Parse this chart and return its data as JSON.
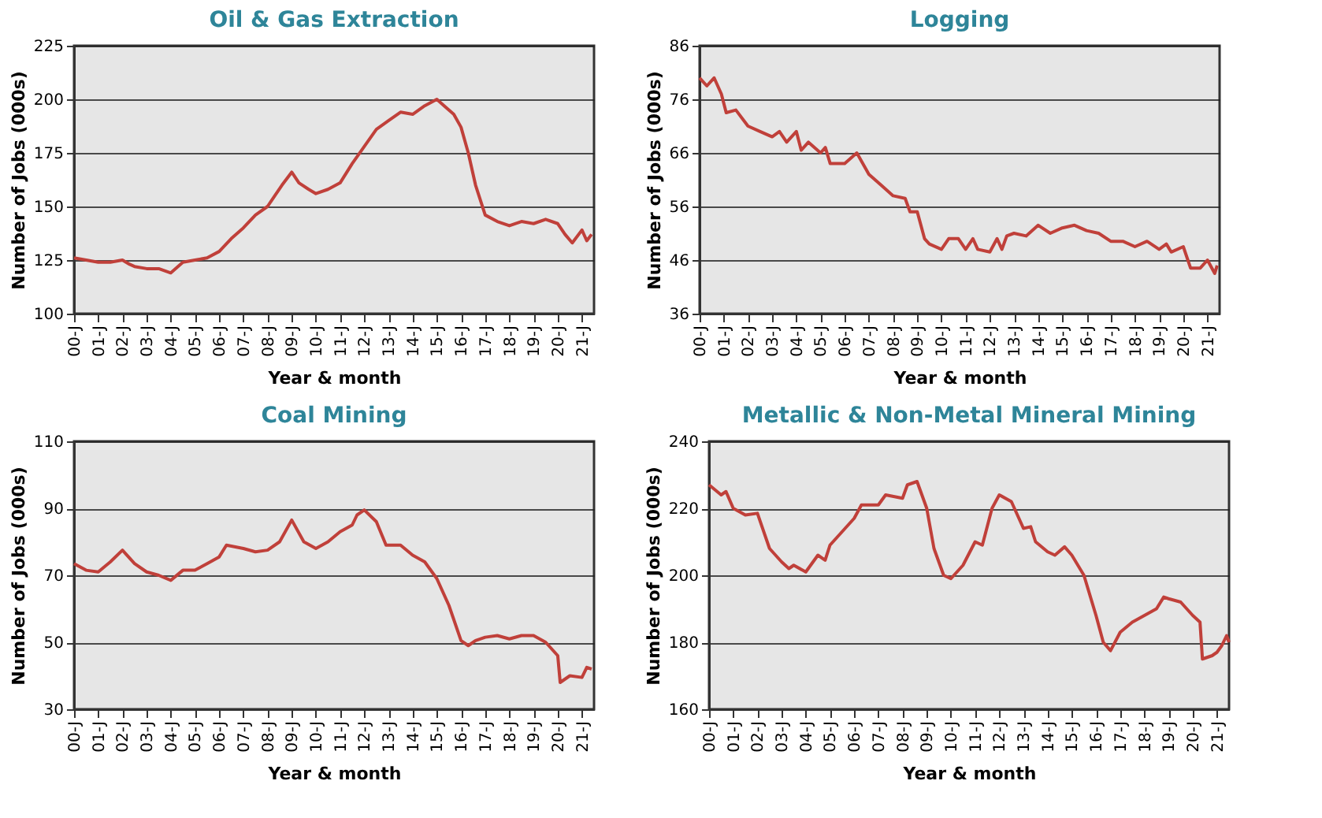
{
  "chart_data": [
    {
      "type": "line",
      "title": "Oil & Gas Extraction",
      "xlabel": "Year & month",
      "ylabel": "Number of Jobs (000s)",
      "grid": "y",
      "legend": false,
      "marker": "none",
      "line_style": "solid",
      "xlim": [
        0,
        21.5
      ],
      "ylim": [
        100,
        225
      ],
      "yticks": [
        100,
        125,
        150,
        175,
        200,
        225
      ],
      "xticks": [
        {
          "value": 0,
          "label": "00-J"
        },
        {
          "value": 1,
          "label": "01-J"
        },
        {
          "value": 2,
          "label": "02-J"
        },
        {
          "value": 3,
          "label": "03-J"
        },
        {
          "value": 4,
          "label": "04-J"
        },
        {
          "value": 5,
          "label": "05-J"
        },
        {
          "value": 6,
          "label": "06-J"
        },
        {
          "value": 7,
          "label": "07-J"
        },
        {
          "value": 8,
          "label": "08-J"
        },
        {
          "value": 9,
          "label": "09-J"
        },
        {
          "value": 10,
          "label": "10-J"
        },
        {
          "value": 11,
          "label": "11-J"
        },
        {
          "value": 12,
          "label": "12-J"
        },
        {
          "value": 13,
          "label": "13-J"
        },
        {
          "value": 14,
          "label": "14-J"
        },
        {
          "value": 15,
          "label": "15-J"
        },
        {
          "value": 16,
          "label": "16-J"
        },
        {
          "value": 17,
          "label": "17-J"
        },
        {
          "value": 18,
          "label": "18-J"
        },
        {
          "value": 19,
          "label": "19-J"
        },
        {
          "value": 20,
          "label": "20-J"
        },
        {
          "value": 21,
          "label": "21-J"
        }
      ],
      "series": [
        {
          "color": "#c0403a",
          "x": [
            0,
            0.5,
            1,
            1.5,
            2,
            2.3,
            2.5,
            3,
            3.5,
            4,
            4.5,
            5,
            5.5,
            6,
            6.5,
            7,
            7.5,
            8,
            8.3,
            8.6,
            9,
            9.3,
            9.7,
            10,
            10.5,
            11,
            11.5,
            12,
            12.5,
            13,
            13.5,
            14,
            14.5,
            15,
            15.3,
            15.7,
            16,
            16.3,
            16.6,
            17,
            17.5,
            18,
            18.5,
            19,
            19.5,
            20,
            20.3,
            20.6,
            21,
            21.2,
            21.4
          ],
          "values": [
            126,
            125,
            124,
            124,
            125,
            123,
            122,
            121,
            121,
            119,
            124,
            125,
            126,
            129,
            135,
            140,
            146,
            150,
            155,
            160,
            166,
            161,
            158,
            156,
            158,
            161,
            170,
            178,
            186,
            190,
            194,
            193,
            197,
            200,
            197,
            193,
            187,
            175,
            160,
            146,
            143,
            141,
            143,
            142,
            144,
            142,
            137,
            133,
            139,
            134,
            137
          ]
        }
      ]
    },
    {
      "type": "line",
      "title": "Logging",
      "xlabel": "Year & month",
      "ylabel": "Number of Jobs (000s)",
      "grid": "y",
      "legend": false,
      "marker": "none",
      "line_style": "solid",
      "xlim": [
        0,
        21.5
      ],
      "ylim": [
        36,
        86
      ],
      "yticks": [
        36,
        46,
        56,
        66,
        76,
        86
      ],
      "xticks": [
        {
          "value": 0,
          "label": "00-J"
        },
        {
          "value": 1,
          "label": "01-J"
        },
        {
          "value": 2,
          "label": "02-J"
        },
        {
          "value": 3,
          "label": "03-J"
        },
        {
          "value": 4,
          "label": "04-J"
        },
        {
          "value": 5,
          "label": "05-J"
        },
        {
          "value": 6,
          "label": "06-J"
        },
        {
          "value": 7,
          "label": "07-J"
        },
        {
          "value": 8,
          "label": "08-J"
        },
        {
          "value": 9,
          "label": "09-J"
        },
        {
          "value": 10,
          "label": "10-J"
        },
        {
          "value": 11,
          "label": "11-J"
        },
        {
          "value": 12,
          "label": "12-J"
        },
        {
          "value": 13,
          "label": "13-J"
        },
        {
          "value": 14,
          "label": "14-J"
        },
        {
          "value": 15,
          "label": "15-J"
        },
        {
          "value": 16,
          "label": "16-J"
        },
        {
          "value": 17,
          "label": "17-J"
        },
        {
          "value": 18,
          "label": "18-J"
        },
        {
          "value": 19,
          "label": "19-J"
        },
        {
          "value": 20,
          "label": "20-J"
        },
        {
          "value": 21,
          "label": "21-J"
        }
      ],
      "series": [
        {
          "color": "#c0403a",
          "x": [
            0,
            0.3,
            0.6,
            0.9,
            1.1,
            1.5,
            2,
            2.5,
            3,
            3.3,
            3.6,
            4,
            4.2,
            4.5,
            5,
            5.2,
            5.4,
            6,
            6.5,
            7,
            7.5,
            8,
            8.5,
            8.7,
            9,
            9.3,
            9.5,
            10,
            10.3,
            10.7,
            11,
            11.3,
            11.5,
            12,
            12.3,
            12.5,
            12.7,
            13,
            13.5,
            14,
            14.5,
            15,
            15.5,
            16,
            16.5,
            17,
            17.5,
            18,
            18.5,
            19,
            19.3,
            19.5,
            20,
            20.3,
            20.7,
            21,
            21.3,
            21.4
          ],
          "values": [
            80,
            78.5,
            80,
            77,
            73.5,
            74,
            71,
            70,
            69,
            70,
            68,
            70,
            66.5,
            68,
            66,
            67,
            64,
            64,
            66,
            62,
            60,
            58,
            57.5,
            55,
            55,
            50,
            49,
            48,
            50,
            50,
            48,
            50,
            48,
            47.5,
            50,
            48,
            50.5,
            51,
            50.5,
            52.5,
            51,
            52,
            52.5,
            51.5,
            51,
            49.5,
            49.5,
            48.5,
            49.5,
            48,
            49,
            47.5,
            48.5,
            44.5,
            44.5,
            46,
            43.5,
            45
          ]
        }
      ]
    },
    {
      "type": "line",
      "title": "Coal Mining",
      "xlabel": "Year & month",
      "ylabel": "Number of Jobs (000s)",
      "grid": "y",
      "legend": false,
      "marker": "none",
      "line_style": "solid",
      "xlim": [
        0,
        21.5
      ],
      "ylim": [
        30,
        110
      ],
      "yticks": [
        30,
        50,
        70,
        90,
        110
      ],
      "xticks": [
        {
          "value": 0,
          "label": "00-J"
        },
        {
          "value": 1,
          "label": "01-J"
        },
        {
          "value": 2,
          "label": "02-J"
        },
        {
          "value": 3,
          "label": "03-J"
        },
        {
          "value": 4,
          "label": "04-J"
        },
        {
          "value": 5,
          "label": "05-J"
        },
        {
          "value": 6,
          "label": "06-J"
        },
        {
          "value": 7,
          "label": "07-J"
        },
        {
          "value": 8,
          "label": "08-J"
        },
        {
          "value": 9,
          "label": "09-J"
        },
        {
          "value": 10,
          "label": "10-J"
        },
        {
          "value": 11,
          "label": "11-J"
        },
        {
          "value": 12,
          "label": "12-J"
        },
        {
          "value": 13,
          "label": "13-J"
        },
        {
          "value": 14,
          "label": "14-J"
        },
        {
          "value": 15,
          "label": "15-J"
        },
        {
          "value": 16,
          "label": "16-J"
        },
        {
          "value": 17,
          "label": "17-J"
        },
        {
          "value": 18,
          "label": "18-J"
        },
        {
          "value": 19,
          "label": "19-J"
        },
        {
          "value": 20,
          "label": "20-J"
        },
        {
          "value": 21,
          "label": "21-J"
        }
      ],
      "series": [
        {
          "color": "#c0403a",
          "x": [
            0,
            0.5,
            1,
            1.5,
            2,
            2.5,
            3,
            3.5,
            4,
            4.5,
            5,
            5.5,
            6,
            6.3,
            7,
            7.5,
            8,
            8.5,
            9,
            9.5,
            10,
            10.5,
            11,
            11.5,
            11.7,
            12,
            12.5,
            12.9,
            13.5,
            14,
            14.5,
            15,
            15.5,
            16,
            16.3,
            16.6,
            17,
            17.5,
            18,
            18.5,
            19,
            19.5,
            20,
            20.1,
            20.5,
            21,
            21.2,
            21.4
          ],
          "values": [
            73.5,
            71.5,
            71,
            74,
            77.5,
            73.5,
            71,
            70,
            68.5,
            71.5,
            71.5,
            73.5,
            75.5,
            79,
            78,
            77,
            77.5,
            80,
            86.5,
            80,
            78,
            80,
            83,
            85,
            88,
            89.5,
            86,
            79,
            79,
            76,
            74,
            69,
            61,
            50.5,
            49,
            50.5,
            51.5,
            52,
            51,
            52,
            52,
            50,
            46,
            38,
            40,
            39.5,
            42.5,
            42
          ]
        }
      ]
    },
    {
      "type": "line",
      "title": "Metallic & Non-Metal Mineral Mining",
      "xlabel": "Year & month",
      "ylabel": "Number of Jobs (000s)",
      "grid": "y",
      "legend": false,
      "marker": "none",
      "line_style": "solid",
      "xlim": [
        0,
        21.5
      ],
      "ylim": [
        160,
        240
      ],
      "yticks": [
        160,
        180,
        200,
        220,
        240
      ],
      "xticks": [
        {
          "value": 0,
          "label": "00-J"
        },
        {
          "value": 1,
          "label": "01-J"
        },
        {
          "value": 2,
          "label": "02-J"
        },
        {
          "value": 3,
          "label": "03-J"
        },
        {
          "value": 4,
          "label": "04-J"
        },
        {
          "value": 5,
          "label": "05-J"
        },
        {
          "value": 6,
          "label": "06-J"
        },
        {
          "value": 7,
          "label": "07-J"
        },
        {
          "value": 8,
          "label": "08-J"
        },
        {
          "value": 9,
          "label": "09-J"
        },
        {
          "value": 10,
          "label": "10-J"
        },
        {
          "value": 11,
          "label": "11-J"
        },
        {
          "value": 12,
          "label": "12-J"
        },
        {
          "value": 13,
          "label": "13-J"
        },
        {
          "value": 14,
          "label": "14-J"
        },
        {
          "value": 15,
          "label": "15-J"
        },
        {
          "value": 16,
          "label": "16-J"
        },
        {
          "value": 17,
          "label": "17-J"
        },
        {
          "value": 18,
          "label": "18-J"
        },
        {
          "value": 19,
          "label": "19-J"
        },
        {
          "value": 20,
          "label": "20-J"
        },
        {
          "value": 21,
          "label": "21-J"
        }
      ],
      "series": [
        {
          "color": "#c0403a",
          "x": [
            0,
            0.5,
            0.7,
            1,
            1.5,
            2,
            2.5,
            3,
            3.3,
            3.5,
            4,
            4.5,
            4.8,
            5,
            5.5,
            6,
            6.3,
            7,
            7.3,
            8,
            8.2,
            8.6,
            9,
            9.3,
            9.7,
            10,
            10.5,
            11,
            11.3,
            11.7,
            12,
            12.5,
            13,
            13.3,
            13.5,
            14,
            14.3,
            14.7,
            15,
            15.5,
            16,
            16.3,
            16.6,
            17,
            17.5,
            18,
            18.5,
            18.8,
            19,
            19.5,
            20,
            20.3,
            20.4,
            20.8,
            21,
            21.2,
            21.4,
            21.5
          ],
          "values": [
            227,
            224,
            225,
            220,
            218,
            218.5,
            208,
            204,
            202,
            203,
            201,
            206,
            204.5,
            209,
            213,
            217,
            221,
            221,
            224,
            223,
            227,
            228,
            220,
            208,
            200,
            199,
            203,
            210,
            209,
            220,
            224,
            222,
            214,
            214.5,
            210,
            207,
            206,
            208.5,
            206,
            200,
            188,
            180,
            177.5,
            183,
            186,
            188,
            190,
            193.5,
            193,
            192,
            188,
            186,
            175,
            176,
            177,
            179,
            182,
            180
          ]
        }
      ]
    }
  ]
}
